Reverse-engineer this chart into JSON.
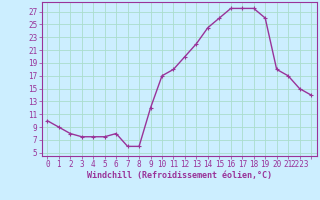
{
  "x": [
    0,
    1,
    2,
    3,
    4,
    5,
    6,
    7,
    8,
    9,
    10,
    11,
    12,
    13,
    14,
    15,
    16,
    17,
    18,
    19,
    20,
    21,
    22,
    23
  ],
  "y": [
    10,
    9,
    8,
    7.5,
    7.5,
    7.5,
    8,
    6,
    6,
    12,
    17,
    18,
    20,
    22,
    24.5,
    26,
    27.5,
    27.5,
    27.5,
    26,
    18,
    17,
    15,
    14
  ],
  "line_color": "#993399",
  "marker": "+",
  "background_color": "#cceeff",
  "grid_color": "#aaddcc",
  "xlabel": "Windchill (Refroidissement éolien,°C)",
  "xlabel_color": "#993399",
  "tick_color": "#993399",
  "ylabel_ticks": [
    5,
    7,
    9,
    11,
    13,
    15,
    17,
    19,
    21,
    23,
    25,
    27
  ],
  "ylim": [
    4.5,
    28.5
  ],
  "xlim": [
    -0.5,
    23.5
  ],
  "font_size": 5.5,
  "xlabel_font_size": 6.0,
  "linewidth": 1.0,
  "markersize": 3.0
}
